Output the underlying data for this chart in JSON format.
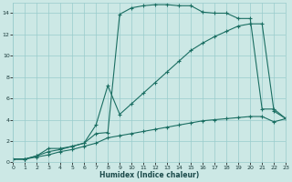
{
  "xlabel": "Humidex (Indice chaleur)",
  "bg_color": "#cce8e5",
  "grid_color": "#99cccc",
  "line_color": "#1a6e62",
  "xlim": [
    0,
    23
  ],
  "ylim": [
    0,
    15
  ],
  "series1_x": [
    0,
    1,
    2,
    3,
    4,
    5,
    6,
    7,
    8,
    9,
    10,
    11,
    12,
    13,
    14,
    15,
    16,
    17,
    18,
    19,
    20,
    21,
    22,
    23
  ],
  "series1_y": [
    0.3,
    0.3,
    0.6,
    1.3,
    1.3,
    1.5,
    1.8,
    2.7,
    2.8,
    13.9,
    14.5,
    14.7,
    14.8,
    14.8,
    14.7,
    14.7,
    14.1,
    14.0,
    14.0,
    13.5,
    13.5,
    5.0,
    5.0,
    4.1
  ],
  "series2_x": [
    0,
    1,
    2,
    3,
    4,
    5,
    6,
    7,
    8,
    9,
    10,
    11,
    12,
    13,
    14,
    15,
    16,
    17,
    18,
    19,
    20,
    21,
    22,
    23
  ],
  "series2_y": [
    0.3,
    0.3,
    0.6,
    1.0,
    1.2,
    1.5,
    1.8,
    3.5,
    7.2,
    4.5,
    5.5,
    6.5,
    7.5,
    8.5,
    9.5,
    10.5,
    11.2,
    11.8,
    12.3,
    12.8,
    13.0,
    13.0,
    4.8,
    4.1
  ],
  "series3_x": [
    0,
    1,
    2,
    3,
    4,
    5,
    6,
    7,
    8,
    9,
    10,
    11,
    12,
    13,
    14,
    15,
    16,
    17,
    18,
    19,
    20,
    21,
    22,
    23
  ],
  "series3_y": [
    0.3,
    0.3,
    0.5,
    0.7,
    1.0,
    1.2,
    1.5,
    1.8,
    2.3,
    2.5,
    2.7,
    2.9,
    3.1,
    3.3,
    3.5,
    3.7,
    3.9,
    4.0,
    4.1,
    4.2,
    4.3,
    4.3,
    3.8,
    4.1
  ],
  "yticks": [
    0,
    2,
    4,
    6,
    8,
    10,
    12,
    14
  ],
  "ytick_labels": [
    "0",
    "2",
    "4",
    "6",
    "8",
    "10",
    "12",
    "14"
  ]
}
